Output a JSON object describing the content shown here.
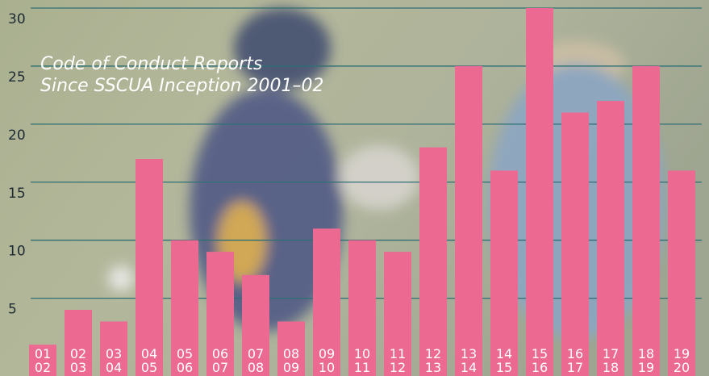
{
  "chart_data": {
    "type": "bar",
    "title": [
      "Code of Conduct Reports",
      "Since SSCUA Inception 2001–02"
    ],
    "categories": [
      [
        "01",
        "02"
      ],
      [
        "02",
        "03"
      ],
      [
        "03",
        "04"
      ],
      [
        "04",
        "05"
      ],
      [
        "05",
        "06"
      ],
      [
        "06",
        "07"
      ],
      [
        "07",
        "08"
      ],
      [
        "08",
        "09"
      ],
      [
        "09",
        "10"
      ],
      [
        "10",
        "11"
      ],
      [
        "11",
        "12"
      ],
      [
        "12",
        "13"
      ],
      [
        "13",
        "14"
      ],
      [
        "14",
        "15"
      ],
      [
        "15",
        "16"
      ],
      [
        "16",
        "17"
      ],
      [
        "17",
        "18"
      ],
      [
        "18",
        "19"
      ],
      [
        "19",
        "20"
      ]
    ],
    "values": [
      1,
      4,
      3,
      17,
      10,
      9,
      7,
      3,
      11,
      10,
      9,
      18,
      25,
      16,
      30,
      21,
      22,
      25,
      16
    ],
    "color": "#ec6a92",
    "grid_color": "#2f6f73",
    "ylim": [
      -1.7,
      30
    ],
    "yticks": [
      5,
      10,
      15,
      20,
      25,
      30
    ],
    "grid": true
  }
}
